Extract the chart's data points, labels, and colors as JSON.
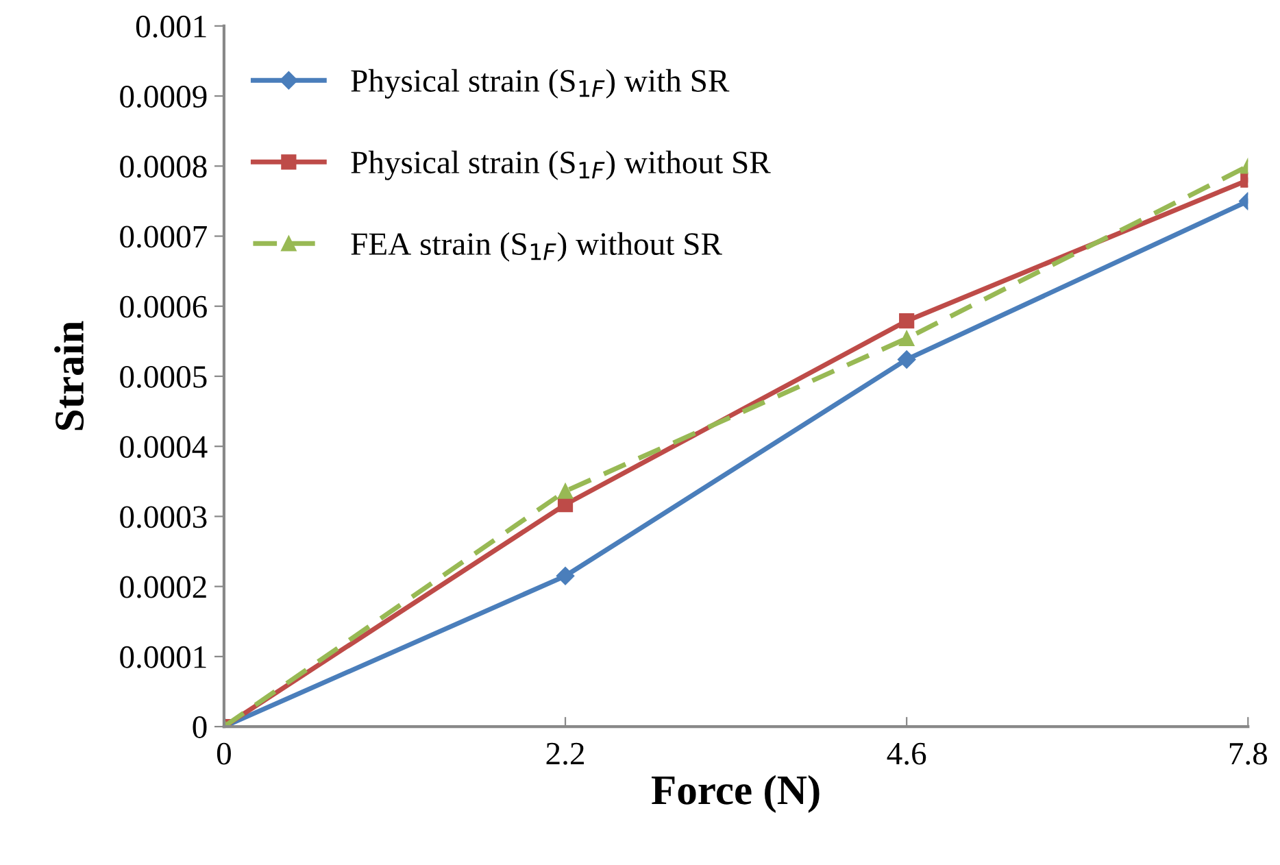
{
  "chart_data": {
    "type": "line",
    "xlabel": "Force (N)",
    "ylabel": "Strain",
    "categories": [
      "0",
      "2.2",
      "4.6",
      "7.8"
    ],
    "series": [
      {
        "name": "Physical strain (S$_{1F}$) with SR",
        "color": "#4a7ebb",
        "marker": "diamond",
        "line_style": "solid",
        "values": [
          0,
          0.000215,
          0.000524,
          0.00075
        ]
      },
      {
        "name": "Physical strain (S$_{1F}$) without SR",
        "color": "#be4b48",
        "marker": "square",
        "line_style": "solid",
        "values": [
          0,
          0.000317,
          0.000579,
          0.00078
        ]
      },
      {
        "name": "FEA strain (S$_{1F}$) without SR",
        "color": "#98b954",
        "marker": "triangle",
        "line_style": "dashed",
        "values": [
          0,
          0.000336,
          0.000554,
          0.0008
        ]
      }
    ],
    "ylim": [
      0,
      0.001
    ],
    "yticks": [
      0,
      0.0001,
      0.0002,
      0.0003,
      0.0004,
      0.0005,
      0.0006,
      0.0007,
      0.0008,
      0.0009,
      0.001
    ],
    "grid": false,
    "legend": "top left"
  }
}
